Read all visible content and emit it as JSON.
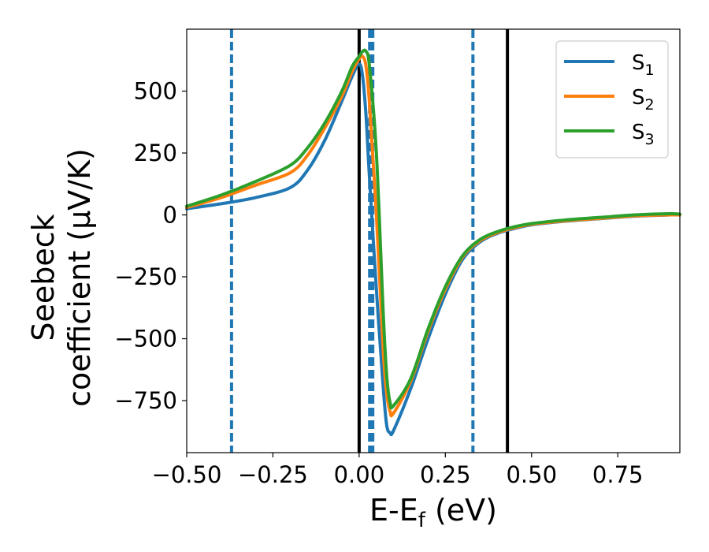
{
  "chart_data": {
    "type": "line",
    "xlabel_main": "E-E",
    "xlabel_sub": "f",
    "xlabel_unit": " (eV)",
    "ylabel_line1": "Seebeck",
    "ylabel_line2": "coefficient  (μV/K)",
    "xlim": [
      -0.5,
      0.93
    ],
    "ylim": [
      -960,
      750
    ],
    "xticks": [
      -0.5,
      -0.25,
      0.0,
      0.25,
      0.5,
      0.75
    ],
    "xtick_labels": [
      "−0.50",
      "−0.25",
      "0.00",
      "0.25",
      "0.50",
      "0.75"
    ],
    "yticks": [
      -750,
      -500,
      -250,
      0,
      250,
      500
    ],
    "ytick_labels": [
      "−750",
      "−500",
      "−250",
      "0",
      "250",
      "500"
    ],
    "grid": false,
    "legend_position": "top-right",
    "series": [
      {
        "name": "S",
        "sub": "1",
        "color": "#1f77b4",
        "x": [
          -0.5,
          -0.4,
          -0.3,
          -0.2,
          -0.15,
          -0.1,
          -0.05,
          -0.02,
          0.0,
          0.01,
          0.02,
          0.03,
          0.05,
          0.07,
          0.08,
          0.09,
          0.1,
          0.15,
          0.2,
          0.25,
          0.3,
          0.35,
          0.4,
          0.45,
          0.5,
          0.6,
          0.7,
          0.8,
          0.9,
          0.93
        ],
        "y": [
          25,
          45,
          70,
          110,
          180,
          300,
          460,
          560,
          610,
          560,
          400,
          150,
          -300,
          -700,
          -850,
          -880,
          -870,
          -700,
          -500,
          -320,
          -180,
          -110,
          -75,
          -55,
          -40,
          -25,
          -15,
          -5,
          0,
          0
        ]
      },
      {
        "name": "S",
        "sub": "2",
        "color": "#ff7f0e",
        "x": [
          -0.5,
          -0.4,
          -0.3,
          -0.2,
          -0.15,
          -0.1,
          -0.05,
          -0.02,
          0.0,
          0.01,
          0.02,
          0.03,
          0.05,
          0.07,
          0.08,
          0.09,
          0.1,
          0.15,
          0.2,
          0.25,
          0.3,
          0.35,
          0.4,
          0.45,
          0.5,
          0.6,
          0.7,
          0.8,
          0.9,
          0.93
        ],
        "y": [
          30,
          70,
          120,
          170,
          240,
          350,
          480,
          580,
          630,
          640,
          600,
          450,
          0,
          -550,
          -720,
          -795,
          -800,
          -670,
          -470,
          -300,
          -170,
          -105,
          -72,
          -52,
          -38,
          -24,
          -14,
          -4,
          0,
          0
        ]
      },
      {
        "name": "S",
        "sub": "3",
        "color": "#2ca02c",
        "x": [
          -0.5,
          -0.4,
          -0.3,
          -0.2,
          -0.15,
          -0.1,
          -0.05,
          -0.02,
          0.0,
          0.01,
          0.02,
          0.03,
          0.05,
          0.07,
          0.08,
          0.09,
          0.1,
          0.15,
          0.2,
          0.25,
          0.3,
          0.35,
          0.4,
          0.45,
          0.5,
          0.6,
          0.7,
          0.8,
          0.9,
          0.93
        ],
        "y": [
          35,
          80,
          135,
          200,
          270,
          370,
          500,
          600,
          640,
          660,
          660,
          600,
          250,
          -400,
          -650,
          -760,
          -770,
          -660,
          -460,
          -290,
          -165,
          -100,
          -68,
          -48,
          -35,
          -20,
          -10,
          0,
          5,
          3
        ]
      }
    ],
    "vertical_lines": [
      {
        "x": -0.37,
        "style": "dashed",
        "color": "#1f77b4",
        "width": 4
      },
      {
        "x": 0.0,
        "style": "solid",
        "color": "#000000",
        "width": 4
      },
      {
        "x": 0.035,
        "style": "dashed",
        "color": "#1f77b4",
        "width": 8
      },
      {
        "x": 0.33,
        "style": "dashed",
        "color": "#1f77b4",
        "width": 4
      },
      {
        "x": 0.43,
        "style": "solid",
        "color": "#000000",
        "width": 4
      }
    ]
  }
}
